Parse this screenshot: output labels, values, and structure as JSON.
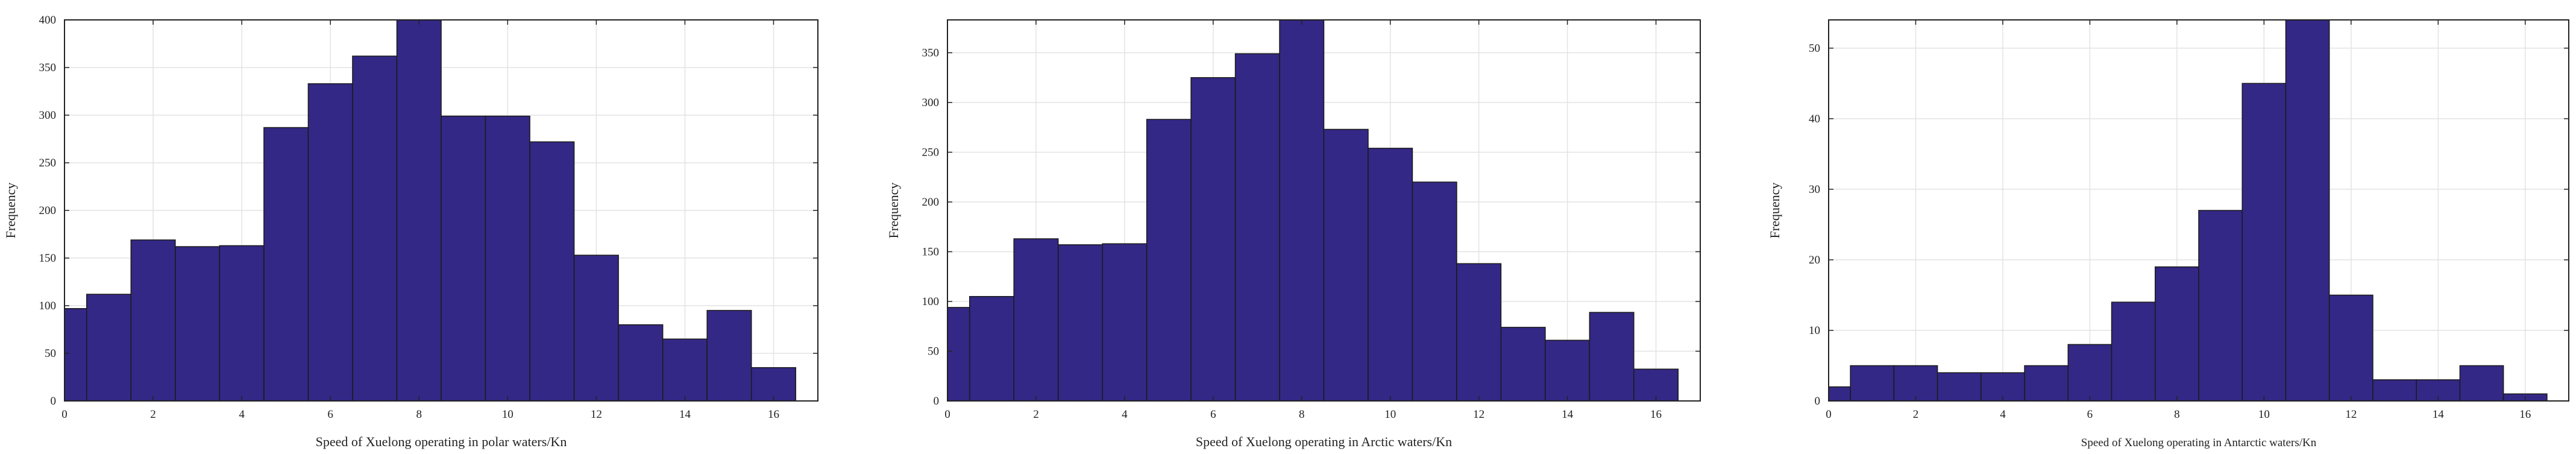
{
  "chart_data": [
    {
      "type": "bar",
      "xlabel": "Speed of Xuelong operating in polar waters/Kn",
      "ylabel": "Frequency",
      "bin_edges": [
        0,
        0.5,
        1.5,
        2.5,
        3.5,
        4.5,
        5.5,
        6.5,
        7.5,
        8.5,
        9.5,
        10.5,
        11.5,
        12.5,
        13.5,
        14.5,
        15.5,
        16.5
      ],
      "values": [
        97,
        112,
        169,
        162,
        163,
        287,
        333,
        362,
        400,
        299,
        299,
        272,
        153,
        80,
        65,
        95,
        35
      ],
      "xlim": [
        0,
        17
      ],
      "ylim": [
        0,
        400
      ],
      "xticks": [
        0,
        2,
        4,
        6,
        8,
        10,
        12,
        14,
        16
      ],
      "yticks": [
        0,
        50,
        100,
        150,
        200,
        250,
        300,
        350,
        400
      ],
      "grid": true,
      "bar_color": "#332885"
    },
    {
      "type": "bar",
      "xlabel": "Speed of Xuelong operating in Arctic waters/Kn",
      "ylabel": "Frequency",
      "bin_edges": [
        0,
        0.5,
        1.5,
        2.5,
        3.5,
        4.5,
        5.5,
        6.5,
        7.5,
        8.5,
        9.5,
        10.5,
        11.5,
        12.5,
        13.5,
        14.5,
        15.5,
        16.5
      ],
      "values": [
        94,
        105,
        163,
        157,
        158,
        283,
        325,
        349,
        383,
        273,
        254,
        220,
        138,
        74,
        61,
        89,
        32
      ],
      "xlim": [
        0,
        17
      ],
      "ylim": [
        0,
        383
      ],
      "xticks": [
        0,
        2,
        4,
        6,
        8,
        10,
        12,
        14,
        16
      ],
      "yticks": [
        0,
        50,
        100,
        150,
        200,
        250,
        300,
        350
      ],
      "grid": true,
      "bar_color": "#332885"
    },
    {
      "type": "bar",
      "xlabel": "Speed of Xuelong operating in Antarctic waters/Kn",
      "ylabel": "Frequency",
      "bin_edges": [
        0,
        0.5,
        1.5,
        2.5,
        3.5,
        4.5,
        5.5,
        6.5,
        7.5,
        8.5,
        9.5,
        10.5,
        11.5,
        12.5,
        13.5,
        14.5,
        15.5,
        16.5
      ],
      "values": [
        2,
        5,
        5,
        4,
        4,
        5,
        8,
        14,
        19,
        27,
        45,
        54,
        15,
        3,
        3,
        5,
        1
      ],
      "xlim": [
        0,
        17
      ],
      "ylim": [
        0,
        54
      ],
      "xticks": [
        0,
        2,
        4,
        6,
        8,
        10,
        12,
        14,
        16
      ],
      "yticks": [
        0,
        10,
        20,
        30,
        40,
        50
      ],
      "grid": true,
      "bar_color": "#332885"
    }
  ]
}
